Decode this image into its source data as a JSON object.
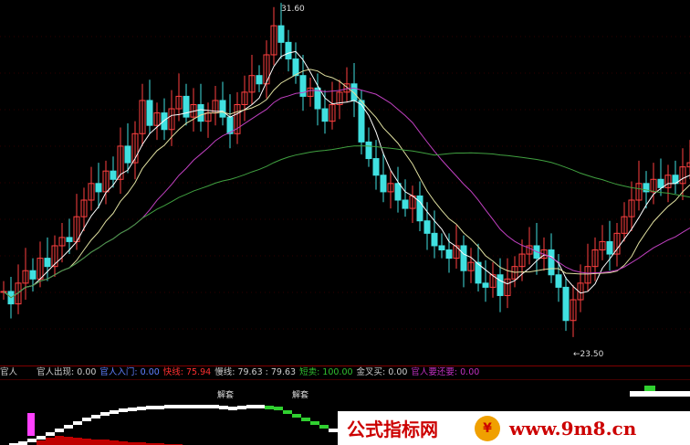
{
  "chart_data": {
    "type": "candlestick",
    "close": [
      24.8,
      24.5,
      25.0,
      25.3,
      25.1,
      25.6,
      25.4,
      25.9,
      26.1,
      26.0,
      26.6,
      27.0,
      27.4,
      27.2,
      27.7,
      27.5,
      28.3,
      27.9,
      28.6,
      29.4,
      28.8,
      29.1,
      28.7,
      29.2,
      29.5,
      29.0,
      29.3,
      28.9,
      29.1,
      29.4,
      29.0,
      28.6,
      29.3,
      29.6,
      30.0,
      29.8,
      30.5,
      31.2,
      30.8,
      30.4,
      30.0,
      29.5,
      29.7,
      29.2,
      28.9,
      29.3,
      29.6,
      29.8,
      29.4,
      28.4,
      28.0,
      27.6,
      27.2,
      27.4,
      27.0,
      26.8,
      27.1,
      26.5,
      26.2,
      25.9,
      25.8,
      25.6,
      25.9,
      25.3,
      25.5,
      25.0,
      24.9,
      25.2,
      24.7,
      25.1,
      25.4,
      25.7,
      25.9,
      25.6,
      25.8,
      25.2,
      24.9,
      24.1,
      24.6,
      25.0,
      25.4,
      25.8,
      26.0,
      25.7,
      26.2,
      26.6,
      27.0,
      27.4,
      27.2,
      27.5,
      27.3,
      27.6,
      27.4,
      27.8,
      27.9
    ],
    "high_label": "31.60",
    "low_label": "←23.50",
    "ylim": [
      23.3,
      31.8
    ],
    "moving_averages": [
      {
        "period": 5,
        "color": "#ffffff"
      },
      {
        "period": 10,
        "color": "#e0e0a0"
      },
      {
        "period": 20,
        "color": "#c040c0"
      },
      {
        "period": 60,
        "color": "#40a040"
      }
    ],
    "colors": {
      "up": "#ff4040",
      "down": "#40e0e0"
    },
    "indicator": {
      "white_line": [
        0,
        2,
        4,
        7,
        10,
        14,
        18,
        22,
        26,
        30,
        33,
        36,
        38,
        40,
        41,
        42,
        43,
        43,
        44,
        44,
        44,
        44,
        44,
        44,
        43,
        42,
        43,
        44,
        44,
        43,
        42,
        38,
        34,
        30,
        26,
        22,
        18,
        14,
        12,
        10
      ],
      "red_area": [
        5,
        8,
        10,
        9,
        8,
        7,
        6,
        6,
        5,
        4,
        3,
        3,
        2,
        2,
        1,
        1,
        0,
        0,
        0,
        0
      ]
    }
  },
  "indicator_bar": {
    "name": "官人",
    "items": [
      {
        "label": "官人出现: 0.00",
        "color": "#cccccc"
      },
      {
        "label": "官人入门: 0.00",
        "color": "#6080ff"
      },
      {
        "label": "快线: 75.94",
        "color": "#ff3030"
      },
      {
        "label": "慢线: 79.63 : 79.63",
        "color": "#cccccc"
      },
      {
        "label": "短卖: 100.00",
        "color": "#30c030"
      },
      {
        "label": "金叉买: 0.00",
        "color": "#cccccc"
      },
      {
        "label": "官人要还要: 0.00",
        "color": "#c030c0"
      }
    ],
    "signal": "解套"
  },
  "watermark": {
    "text": "公式指标网",
    "logo": "¥",
    "url": "www.9m8.cn"
  }
}
